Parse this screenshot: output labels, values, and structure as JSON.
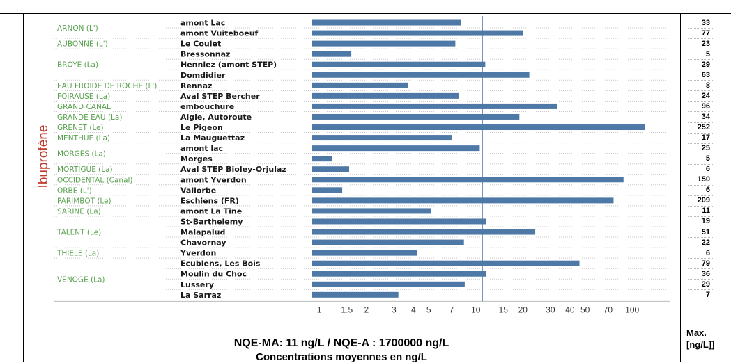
{
  "parameter_label": "Ibuprofène",
  "nqe_text": "NQE-MA: 11 ng/L / NQE-A : 1700000 ng/L",
  "subtitle": "Concentrations moyennes en ng/L",
  "max_header_line1": "Max.",
  "max_header_line2": "[ng/L]]",
  "colors": {
    "bar": "#4e79a7",
    "river_text": "#59a14f",
    "parameter_text": "#c0392b",
    "threshold_line": "#4e79a7"
  },
  "chart_data": {
    "type": "bar",
    "orientation": "horizontal",
    "x_scale": "log",
    "xlim": [
      0.9,
      140
    ],
    "x_ticks": [
      1,
      1.5,
      2,
      3,
      4,
      5,
      7,
      10,
      15,
      20,
      30,
      40,
      50,
      70,
      100
    ],
    "threshold": 11,
    "groups": [
      {
        "river": "ARNON (L')",
        "rows": [
          0,
          1
        ]
      },
      {
        "river": "AUBONNE (L')",
        "rows": [
          2
        ]
      },
      {
        "river": "BROYE (La)",
        "rows": [
          3,
          4,
          5
        ]
      },
      {
        "river": "EAU FROIDE DE ROCHE (L')",
        "rows": [
          6
        ]
      },
      {
        "river": "FOIRAUSE (La)",
        "rows": [
          7
        ]
      },
      {
        "river": "GRAND CANAL",
        "rows": [
          8
        ]
      },
      {
        "river": "GRANDE EAU (La)",
        "rows": [
          9
        ]
      },
      {
        "river": "GRENET (Le)",
        "rows": [
          10
        ]
      },
      {
        "river": "MENTHUE (La)",
        "rows": [
          11
        ]
      },
      {
        "river": "MORGES (La)",
        "rows": [
          12,
          13
        ]
      },
      {
        "river": "MORTIGUE (La)",
        "rows": [
          14
        ]
      },
      {
        "river": "OCCIDENTAL (Canal)",
        "rows": [
          15
        ]
      },
      {
        "river": "ORBE (L')",
        "rows": [
          16
        ]
      },
      {
        "river": "PARIMBOT (Le)",
        "rows": [
          17
        ]
      },
      {
        "river": "SARINE (La)",
        "rows": [
          18
        ]
      },
      {
        "river": "TALENT (Le)",
        "rows": [
          19,
          20,
          21
        ]
      },
      {
        "river": "THIELE (La)",
        "rows": [
          22
        ]
      },
      {
        "river": "VENOGE (La)",
        "rows": [
          23,
          24,
          25,
          26
        ]
      }
    ],
    "rows": [
      {
        "station": "amont Lac",
        "mean": 8.0,
        "max": "33"
      },
      {
        "station": "amont Vuiteboeuf",
        "mean": 20,
        "max": "77"
      },
      {
        "station": "Le Coulet",
        "mean": 7.4,
        "max": "23"
      },
      {
        "station": "Bressonnaz",
        "mean": 1.6,
        "max": "5"
      },
      {
        "station": "Henniez (amont STEP)",
        "mean": 11.5,
        "max": "29"
      },
      {
        "station": "Domdidier",
        "mean": 22,
        "max": "63"
      },
      {
        "station": "Rennaz",
        "mean": 3.7,
        "max": "8"
      },
      {
        "station": "Aval STEP Bercher",
        "mean": 7.8,
        "max": "24"
      },
      {
        "station": "embouchure",
        "mean": 33,
        "max": "96"
      },
      {
        "station": "Aigle, Autoroute",
        "mean": 19,
        "max": "34"
      },
      {
        "station": "Le Pigeon",
        "mean": 120,
        "max": "252"
      },
      {
        "station": "La Mauguettaz",
        "mean": 7.0,
        "max": "17"
      },
      {
        "station": "amont lac",
        "mean": 10.6,
        "max": "25"
      },
      {
        "station": "Morges",
        "mean": 1.2,
        "max": "5"
      },
      {
        "station": "Aval STEP Bioley-Orjulaz",
        "mean": 1.55,
        "max": "6"
      },
      {
        "station": "amont Yverdon",
        "mean": 88,
        "max": "150"
      },
      {
        "station": "Vallorbe",
        "mean": 1.4,
        "max": "6"
      },
      {
        "station": "Eschiens (FR)",
        "mean": 76,
        "max": "209"
      },
      {
        "station": "amont La Tine",
        "mean": 5.2,
        "max": "11"
      },
      {
        "station": "St-Barthelemy",
        "mean": 11.6,
        "max": "19"
      },
      {
        "station": "Malapalud",
        "mean": 24,
        "max": "51"
      },
      {
        "station": "Chavornay",
        "mean": 8.4,
        "max": "22"
      },
      {
        "station": "Yverdon",
        "mean": 4.2,
        "max": "6"
      },
      {
        "station": "Ecublens, Les Bois",
        "mean": 46,
        "max": "79"
      },
      {
        "station": "Moulin du Choc",
        "mean": 11.7,
        "max": "36"
      },
      {
        "station": "Lussery",
        "mean": 8.5,
        "max": "29"
      },
      {
        "station": "La Sarraz",
        "mean": 3.2,
        "max": "7"
      }
    ]
  }
}
